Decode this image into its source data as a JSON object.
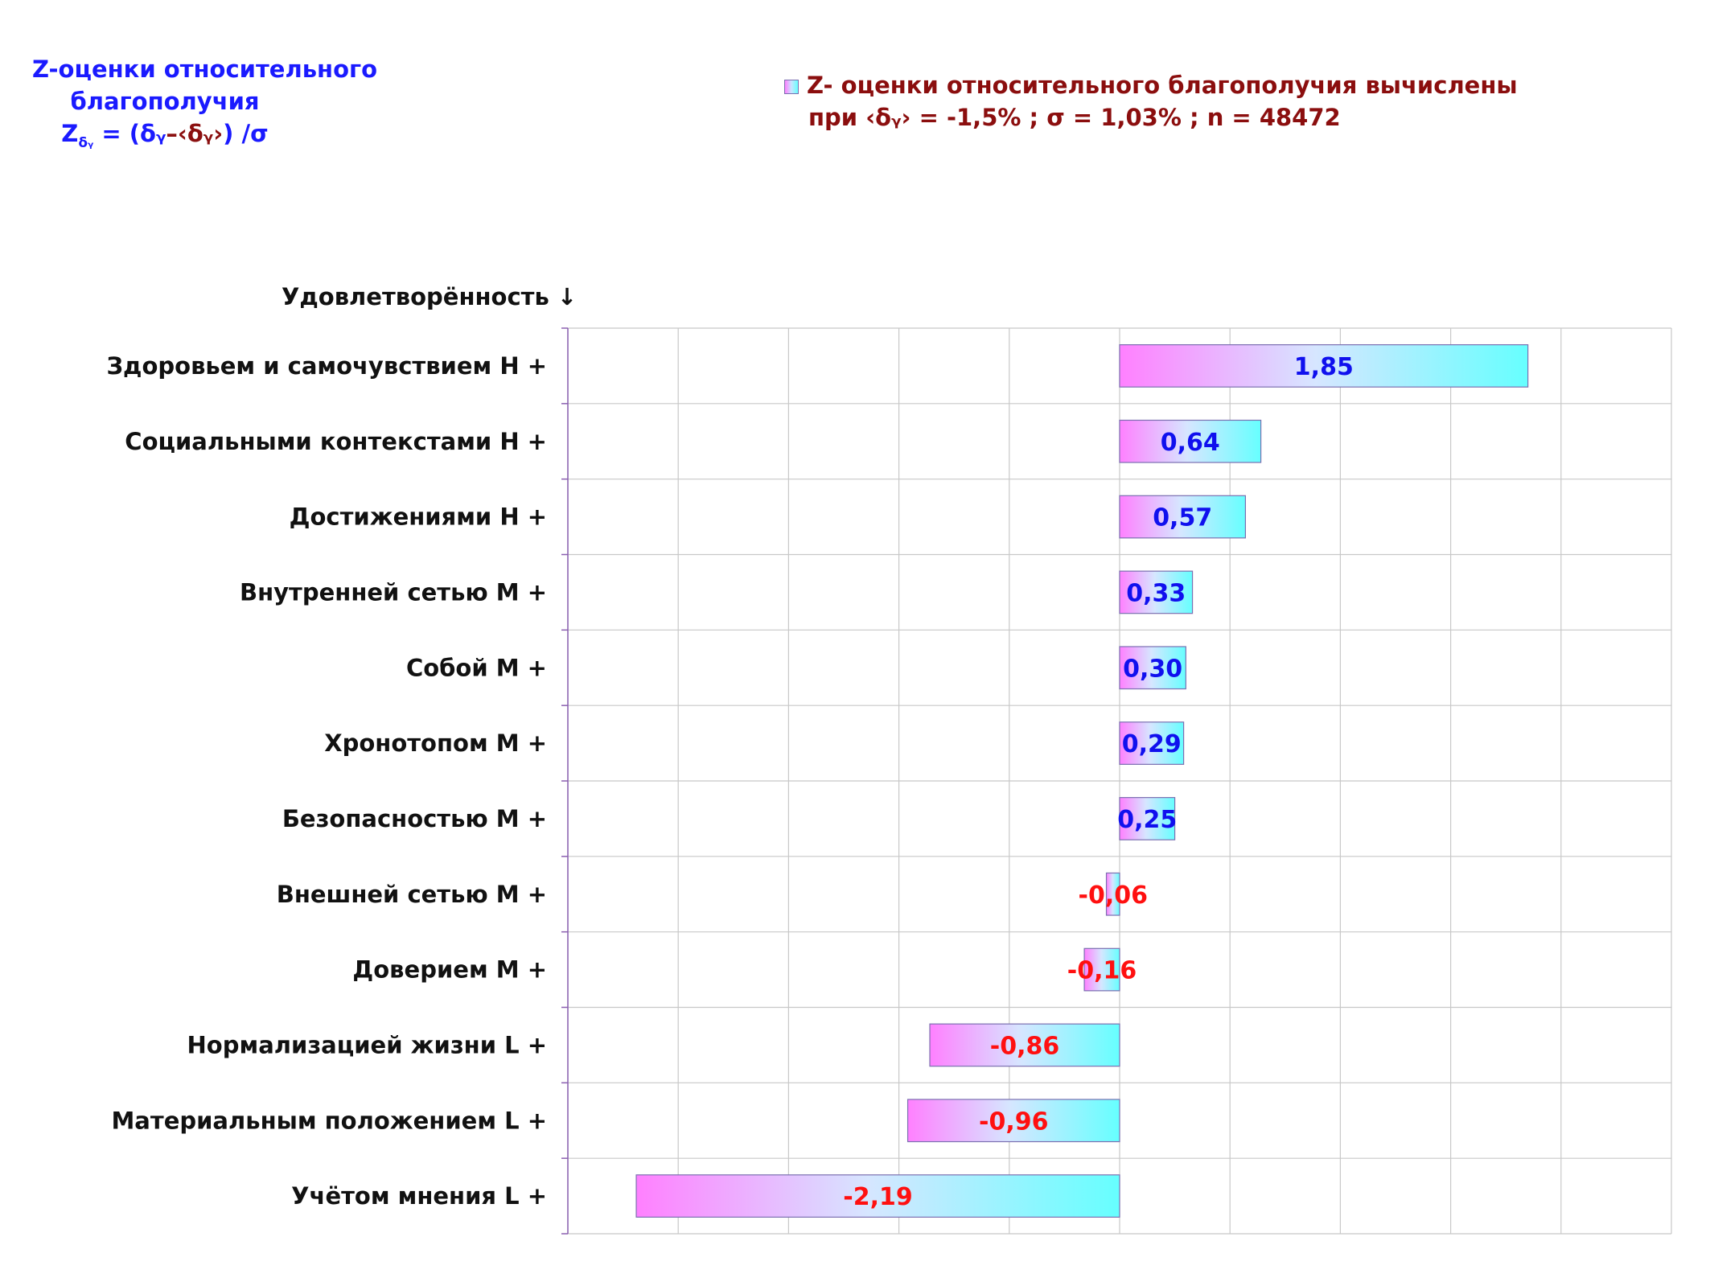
{
  "title_block": {
    "line1": "Z-оценки  относительного",
    "line2": "благополучия",
    "formula_z": "Z",
    "formula_sub": "δᵧ",
    "formula_eq": " = (",
    "formula_d1": "δᵧ",
    "formula_minus": "–",
    "formula_mean": "‹δᵧ›",
    "formula_tail": ") /σ"
  },
  "legend": {
    "line1": "Z- оценки относительного благополучия вычислены",
    "line2": "при ‹δᵧ› = -1,5% ; σ = 1,03% ; n = 48472"
  },
  "colors": {
    "positive_label": "#1010ee",
    "negative_label": "#ff1010",
    "bar_left": "#ff80ff",
    "bar_mid": "#d6e6ff",
    "bar_right": "#66ffff",
    "bar_border": "#7b6fb0",
    "grid": "#c8c8c8",
    "axis": "#8a5fb0"
  },
  "chart_data": {
    "type": "bar",
    "orientation": "horizontal",
    "category_axis_label": "Удовлетворённость ↓",
    "categories": [
      "Здоровьем и самочувствием  H +",
      "Социальными контекстами  H +",
      "Достижениями  H +",
      "Внутренней сетью  M +",
      "Собой  M +",
      "Хронотопом  M +",
      "Безопасностью  M +",
      "Внешней сетью  M +",
      "Доверием  M +",
      "Нормализацией жизни  L +",
      "Материальным положением  L +",
      "Учётом мнения  L +"
    ],
    "values": [
      1.85,
      0.64,
      0.57,
      0.33,
      0.3,
      0.29,
      0.25,
      -0.06,
      -0.16,
      -0.86,
      -0.96,
      -2.19
    ],
    "value_labels": [
      "1,85",
      "0,64",
      "0,57",
      "0,33",
      "0,30",
      "0,29",
      "0,25",
      "-0,06",
      "-0,16",
      "-0,86",
      "-0,96",
      "-2,19"
    ],
    "xlim": [
      -2.5,
      2.5
    ],
    "x_grid_step": 0.5,
    "grid": true
  }
}
